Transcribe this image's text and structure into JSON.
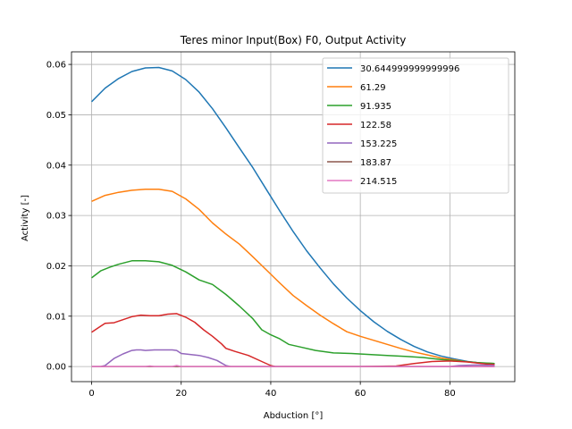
{
  "chart_data": {
    "type": "line",
    "title": "Teres minor Input(Box) F0, Output Activity",
    "xlabel": "Abduction [°]",
    "ylabel": "Activity [-]",
    "xlim": [
      -4.5,
      94.5
    ],
    "ylim": [
      -0.003,
      0.0625
    ],
    "xticks": [
      0,
      20,
      40,
      60,
      80
    ],
    "yticks": [
      0.0,
      0.01,
      0.02,
      0.03,
      0.04,
      0.05,
      0.06
    ],
    "ytick_labels": [
      "0.00",
      "0.01",
      "0.02",
      "0.03",
      "0.04",
      "0.05",
      "0.06"
    ],
    "grid": true,
    "legend_position": "top-right",
    "series": [
      {
        "name": "30.644999999999996",
        "color": "#1f77b4",
        "x": [
          0,
          3,
          6,
          9,
          12,
          15,
          18,
          21,
          24,
          27,
          30,
          33,
          36,
          39,
          42,
          45,
          48,
          51,
          54,
          57,
          60,
          63,
          66,
          69,
          72,
          75,
          78,
          81,
          84,
          87,
          90
        ],
        "y": [
          0.0526,
          0.0553,
          0.0572,
          0.0586,
          0.0593,
          0.0594,
          0.0587,
          0.057,
          0.0545,
          0.0512,
          0.0474,
          0.0434,
          0.0395,
          0.0352,
          0.0309,
          0.0268,
          0.023,
          0.0196,
          0.0164,
          0.0136,
          0.0111,
          0.0089,
          0.007,
          0.0054,
          0.004,
          0.0029,
          0.0021,
          0.0015,
          0.001,
          0.0007,
          0.0006
        ]
      },
      {
        "name": "61.29",
        "color": "#ff7f0e",
        "x": [
          0,
          3,
          6,
          9,
          12,
          15,
          18,
          21,
          24,
          27,
          30,
          33,
          36,
          39,
          42,
          45,
          48,
          51,
          54,
          57,
          60,
          63,
          66,
          69,
          72,
          75,
          78,
          81,
          84,
          87,
          90
        ],
        "y": [
          0.0328,
          0.034,
          0.0346,
          0.035,
          0.0352,
          0.0352,
          0.0348,
          0.0333,
          0.0312,
          0.0285,
          0.0263,
          0.0243,
          0.0218,
          0.0192,
          0.0166,
          0.0141,
          0.0121,
          0.0102,
          0.0085,
          0.0069,
          0.006,
          0.0052,
          0.0044,
          0.0036,
          0.0029,
          0.0023,
          0.0017,
          0.0013,
          0.0009,
          0.0007,
          0.0006
        ]
      },
      {
        "name": "91.935",
        "color": "#2ca02c",
        "x": [
          0,
          2,
          4,
          6,
          9,
          12,
          15,
          18,
          21,
          24,
          27,
          30,
          33,
          36,
          38,
          40,
          42,
          44,
          47,
          50,
          54,
          58,
          62,
          66,
          70,
          74,
          78,
          82,
          86,
          90
        ],
        "y": [
          0.0176,
          0.019,
          0.0197,
          0.0203,
          0.021,
          0.021,
          0.0208,
          0.0201,
          0.0188,
          0.0172,
          0.0163,
          0.0143,
          0.012,
          0.0095,
          0.0073,
          0.0063,
          0.0055,
          0.0044,
          0.0038,
          0.0032,
          0.0027,
          0.0026,
          0.0024,
          0.0022,
          0.002,
          0.0018,
          0.0014,
          0.0011,
          0.0008,
          0.0006
        ]
      },
      {
        "name": "122.58",
        "color": "#d62728",
        "x": [
          0,
          2,
          3,
          5,
          7,
          9,
          11,
          13,
          15,
          17,
          19,
          21,
          23,
          25,
          27,
          29,
          30,
          32,
          35,
          38,
          40,
          41,
          50,
          60,
          68,
          72,
          76,
          80,
          84,
          88,
          90
        ],
        "y": [
          0.0068,
          0.008,
          0.0086,
          0.0087,
          0.0093,
          0.0099,
          0.0102,
          0.0101,
          0.0101,
          0.0104,
          0.0105,
          0.0098,
          0.0088,
          0.0073,
          0.006,
          0.0045,
          0.0036,
          0.003,
          0.0022,
          0.001,
          0.0002,
          0.0,
          0.0,
          0.0,
          0.0001,
          0.0006,
          0.001,
          0.0011,
          0.0009,
          0.0005,
          0.0004
        ]
      },
      {
        "name": "153.225",
        "color": "#9467bd",
        "x": [
          0,
          2,
          3,
          5,
          7,
          9,
          10,
          11,
          12,
          14,
          16,
          18,
          19,
          20,
          22,
          24,
          26,
          28,
          29,
          30,
          31,
          40,
          50,
          60,
          70,
          80,
          82,
          86,
          90
        ],
        "y": [
          0.0,
          0.0,
          0.0002,
          0.0016,
          0.0025,
          0.0032,
          0.0033,
          0.0033,
          0.0032,
          0.0033,
          0.0033,
          0.0033,
          0.0032,
          0.0026,
          0.0024,
          0.0022,
          0.0018,
          0.0012,
          0.0007,
          0.0002,
          0.0,
          0.0,
          0.0,
          0.0,
          0.0,
          0.0,
          0.0002,
          0.0003,
          0.0002
        ]
      },
      {
        "name": "183.87",
        "color": "#8c564b",
        "x": [
          0,
          10,
          20,
          30,
          40,
          50,
          60,
          70,
          80,
          90
        ],
        "y": [
          0.0,
          0.0,
          0.0,
          0.0,
          0.0,
          0.0,
          0.0,
          0.0,
          0.0,
          0.0
        ]
      },
      {
        "name": "214.515",
        "color": "#e377c2",
        "x": [
          0,
          12,
          13,
          14,
          18,
          19,
          20,
          30,
          40,
          50,
          60,
          70,
          80,
          90
        ],
        "y": [
          0.0,
          0.0,
          0.0001,
          0.0,
          0.0,
          0.0002,
          0.0,
          0.0,
          0.0,
          0.0,
          0.0,
          0.0,
          0.0,
          0.0
        ]
      }
    ]
  }
}
